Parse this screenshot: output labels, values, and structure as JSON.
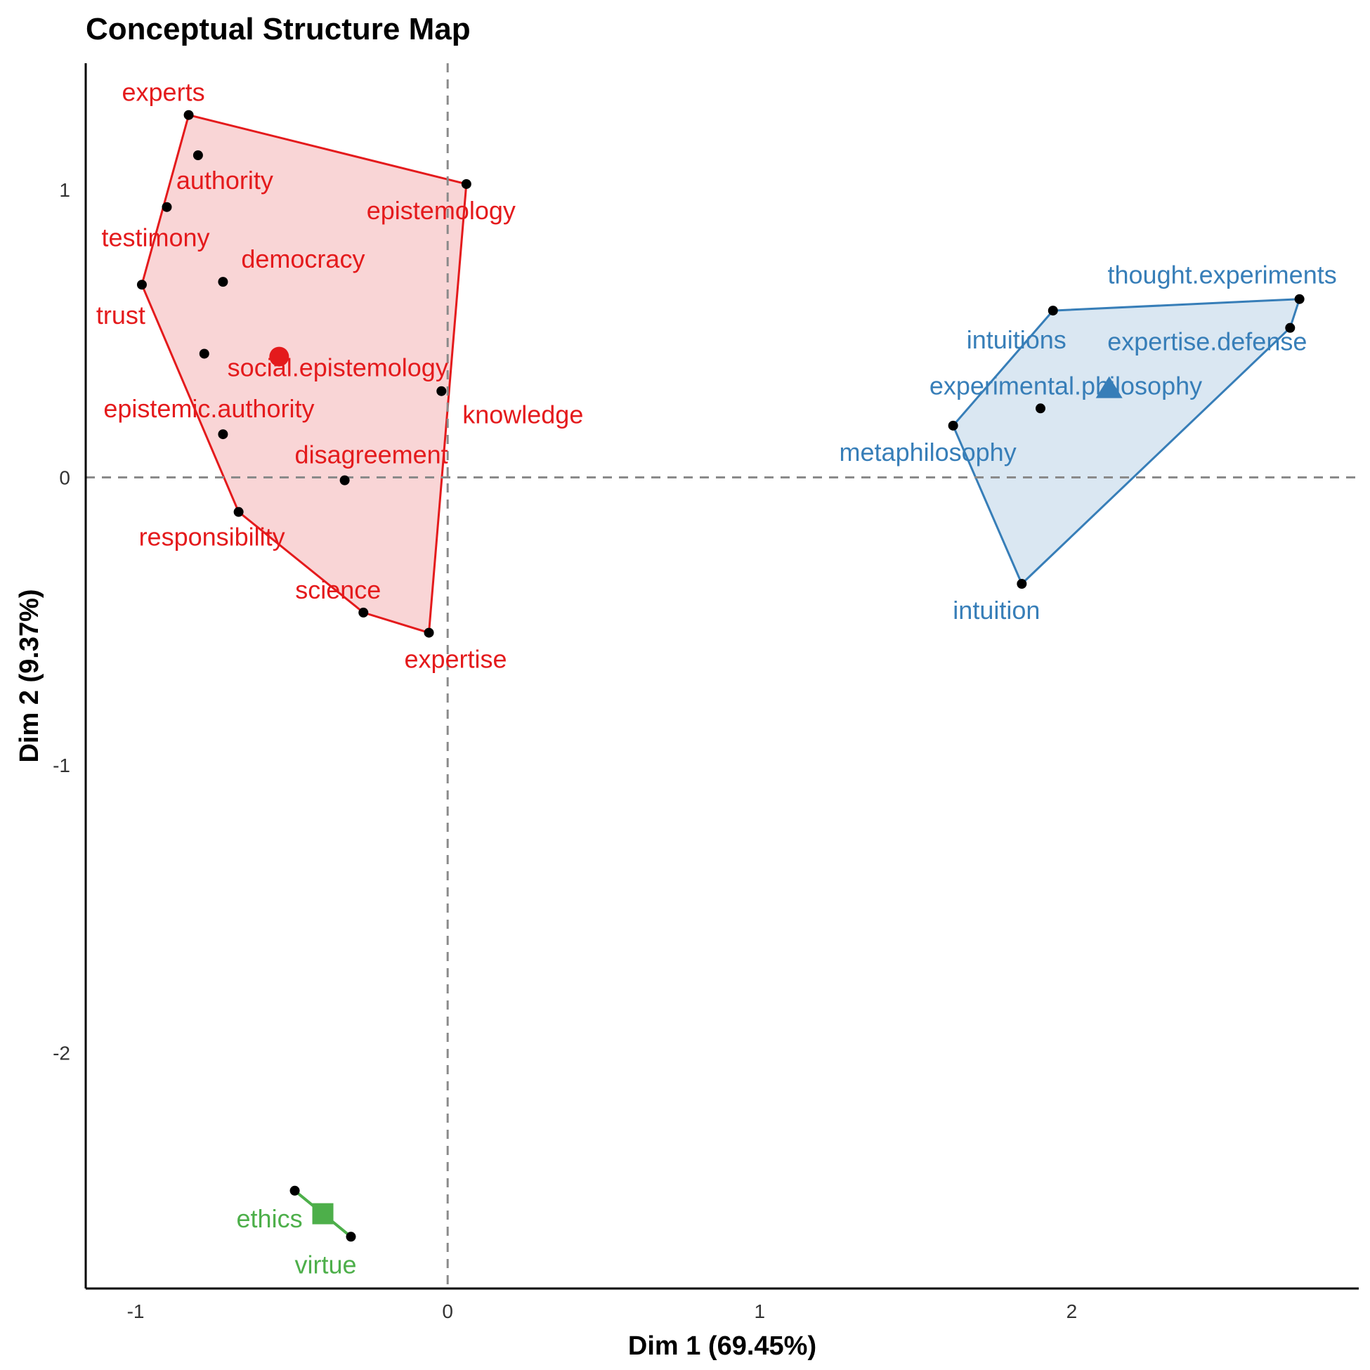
{
  "chart_data": {
    "type": "scatter",
    "title": "Conceptual Structure Map",
    "xlabel": "Dim 1 (69.45%)",
    "ylabel": "Dim 2 (9.37%)",
    "xlim": [
      -1.16,
      2.92
    ],
    "ylim": [
      -2.82,
      1.44
    ],
    "xticks": [
      -1,
      0,
      1,
      2
    ],
    "xtick_labels": [
      "-1",
      "0",
      "1",
      "2"
    ],
    "yticks": [
      -2,
      -1,
      0,
      1
    ],
    "ytick_labels": [
      "-2",
      "-1",
      "0",
      "1"
    ],
    "reference_lines": {
      "x": 0,
      "y": 0
    },
    "grid": false,
    "clusters": [
      {
        "color": "#e41a1c",
        "fill": "#f8d0d1",
        "centroid": {
          "x": -0.54,
          "y": 0.42,
          "marker": "circle"
        },
        "hull": [
          "experts",
          "epistemology",
          "expertise",
          "science",
          "responsibility",
          "trust",
          "experts"
        ],
        "points": [
          {
            "label": "experts",
            "x": -0.83,
            "y": 1.26
          },
          {
            "label": "authority",
            "x": -0.8,
            "y": 1.12
          },
          {
            "label": "testimony",
            "x": -0.9,
            "y": 0.94
          },
          {
            "label": "democracy",
            "x": -0.72,
            "y": 0.68
          },
          {
            "label": "trust",
            "x": -0.98,
            "y": 0.67
          },
          {
            "label": "epistemology",
            "x": 0.06,
            "y": 1.02
          },
          {
            "label": "social.epistemology",
            "x": -0.78,
            "y": 0.43
          },
          {
            "label": "knowledge",
            "x": -0.02,
            "y": 0.3
          },
          {
            "label": "epistemic.authority",
            "x": -0.72,
            "y": 0.15
          },
          {
            "label": "disagreement",
            "x": -0.33,
            "y": -0.01
          },
          {
            "label": "responsibility",
            "x": -0.67,
            "y": -0.12
          },
          {
            "label": "science",
            "x": -0.27,
            "y": -0.47
          },
          {
            "label": "expertise",
            "x": -0.06,
            "y": -0.54
          }
        ]
      },
      {
        "color": "#377eb8",
        "fill": "#d6e4f1",
        "centroid": {
          "x": 2.12,
          "y": 0.31,
          "marker": "triangle"
        },
        "hull": [
          "thought.experiments",
          "intuitions",
          "metaphilosophy",
          "intuition",
          "expertise.defense",
          "thought.experiments"
        ],
        "points": [
          {
            "label": "thought.experiments",
            "x": 2.73,
            "y": 0.62
          },
          {
            "label": "intuitions",
            "x": 1.94,
            "y": 0.58
          },
          {
            "label": "expertise.defense",
            "x": 2.7,
            "y": 0.52
          },
          {
            "label": "experimental.philosophy",
            "x": 1.9,
            "y": 0.24
          },
          {
            "label": "metaphilosophy",
            "x": 1.62,
            "y": 0.18
          },
          {
            "label": "intuition",
            "x": 1.84,
            "y": -0.37
          }
        ]
      },
      {
        "color": "#4daf4a",
        "fill": "#4daf4a",
        "centroid": {
          "x": -0.4,
          "y": -2.56,
          "marker": "square"
        },
        "hull": [
          "ethics",
          "virtue"
        ],
        "points": [
          {
            "label": "ethics",
            "x": -0.49,
            "y": -2.48
          },
          {
            "label": "virtue",
            "x": -0.31,
            "y": -2.64
          }
        ]
      }
    ]
  }
}
